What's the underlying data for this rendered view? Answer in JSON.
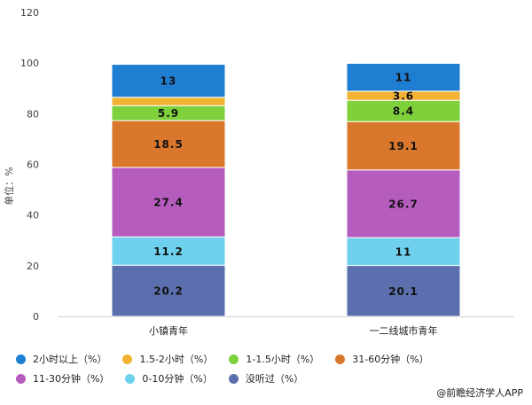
{
  "chart_data": {
    "type": "bar",
    "stacked": true,
    "ylabel": "单位：%",
    "ylim": [
      0,
      120
    ],
    "yticks": [
      0,
      20,
      40,
      60,
      80,
      100,
      120
    ],
    "grid": false,
    "legend_position": "bottom",
    "categories": [
      "小镇青年",
      "一二线城市青年"
    ],
    "series": [
      {
        "name": "没听过（%）",
        "color": "#5b6fae",
        "values": [
          20.2,
          20.1
        ]
      },
      {
        "name": "0-10分钟（%）",
        "color": "#6fd1ee",
        "values": [
          11.2,
          11
        ]
      },
      {
        "name": "11-30分钟（%）",
        "color": "#b65cbf",
        "values": [
          27.4,
          26.7
        ]
      },
      {
        "name": "31-60分钟（%）",
        "color": "#d9782c",
        "values": [
          18.5,
          19.1
        ]
      },
      {
        "name": "1-1.5小时（%）",
        "color": "#7fd13b",
        "values": [
          5.9,
          8.4
        ]
      },
      {
        "name": "1.5-2小时（%）",
        "color": "#f2b233",
        "values": [
          3.3,
          3.6
        ]
      },
      {
        "name": "2小时以上（%）",
        "color": "#1f7ed2",
        "values": [
          13,
          11
        ]
      }
    ],
    "data_labels": [
      [
        "20.2",
        "11.2",
        "27.4",
        "18.5",
        "5.9",
        "",
        "13"
      ],
      [
        "20.1",
        "11",
        "26.7",
        "19.1",
        "8.4",
        "3.6",
        "11"
      ]
    ],
    "legend_order": [
      6,
      5,
      4,
      3,
      2,
      1,
      0
    ]
  },
  "credit": "@前瞻经济学人APP"
}
